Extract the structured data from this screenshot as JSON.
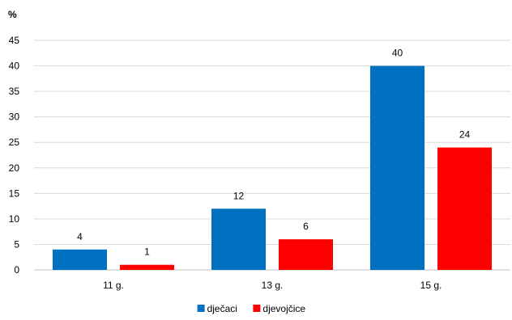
{
  "chart_data": {
    "type": "bar",
    "y_unit_label": "%",
    "categories": [
      "11 g.",
      "13 g.",
      "15 g."
    ],
    "series": [
      {
        "name": "dječaci",
        "color": "#0070C0",
        "values": [
          4,
          12,
          40
        ]
      },
      {
        "name": "djevojčice",
        "color": "#FF0000",
        "values": [
          1,
          6,
          24
        ]
      }
    ],
    "ylim": [
      0,
      45
    ],
    "yticks": [
      0,
      5,
      10,
      15,
      20,
      25,
      30,
      35,
      40,
      45
    ],
    "grid": true,
    "data_labels": true,
    "legend_position": "bottom"
  }
}
